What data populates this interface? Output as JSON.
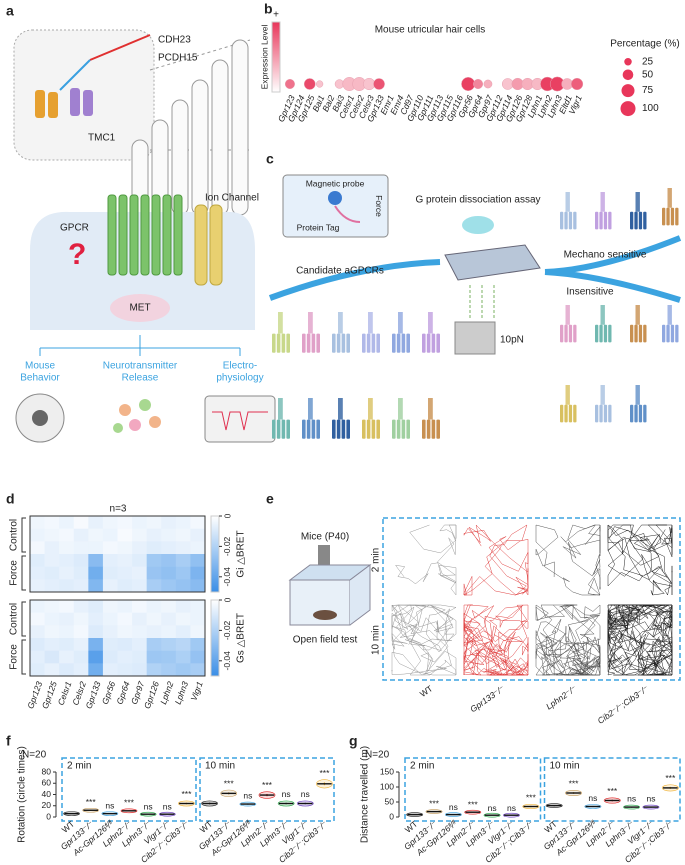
{
  "panels": {
    "a": {
      "label": "a",
      "cdh23": "CDH23",
      "pcdh15": "PCDH15",
      "tmc1": "TMC1",
      "gpcr": "GPCR",
      "question": "?",
      "ion_channel": "Ion Channel",
      "met": "MET",
      "mouse_behavior": [
        "Mouse",
        "Behavior"
      ],
      "neurotransmitter_release": [
        "Neurotransmitter",
        "Release"
      ],
      "electrophysiology": [
        "Electro-",
        "physiology"
      ]
    },
    "c": {
      "label": "c",
      "magnetic_probe": "Magnetic probe",
      "force": "Force",
      "protein_tag": "Protein Tag",
      "assay": "G protein dissociation assay",
      "candidates": "Candidate aGPCRs",
      "mechano_sensitive": "Mechano sensitive",
      "insensitive": "Insensitive",
      "force_value": "10pN"
    },
    "e": {
      "label": "e",
      "mice": "Mice (P40)",
      "test": "Open field test",
      "rows": [
        "2 min",
        "10 min"
      ],
      "columns": [
        "WT",
        "Gpr133⁻/⁻",
        "Lphn2⁻/⁻",
        "Cib2⁻/⁻;Cib3⁻/⁻"
      ]
    }
  },
  "chart_data": [
    {
      "type": "dot",
      "panel_label": "b",
      "title": "Mouse utricular hair cells",
      "colorbar_label": "Expression Level",
      "colorbar_max_label": "+",
      "colormap": [
        "#ffffff",
        "#e8365a"
      ],
      "size_legend_title": "Percentage (%)",
      "size_legend": [
        25,
        50,
        75,
        100
      ],
      "categories": [
        "Gpr123",
        "Gpr124",
        "Gpr125",
        "Bai1",
        "Bai2",
        "Bai3",
        "Celsr1",
        "Celsr2",
        "Celsr3",
        "Gpr133",
        "Emr1",
        "Emr4",
        "Cd97",
        "Gpr110",
        "Gpr111",
        "Gpr113",
        "Gpr115",
        "Gpr116",
        "Gpr56",
        "Gpr64",
        "Gpr97",
        "Gpr112",
        "Gpr114",
        "Gpr126",
        "Gpr128",
        "Lphn1",
        "Lphn2",
        "Lphn3",
        "Eltd1",
        "Vlgr1"
      ],
      "label_colors": [
        "#e02020",
        "#222",
        "#e02020",
        "#222",
        "#222",
        "#222",
        "#e02020",
        "#e02020",
        "#222",
        "#e02020",
        "#222",
        "#222",
        "#222",
        "#222",
        "#222",
        "#222",
        "#222",
        "#222",
        "#e02020",
        "#e02020",
        "#e02020",
        "#222",
        "#222",
        "#e02020",
        "#222",
        "#222",
        "#e02020",
        "#e02020",
        "#222",
        "#e02020"
      ],
      "values": [
        40,
        null,
        55,
        20,
        null,
        35,
        80,
        80,
        60,
        55,
        null,
        null,
        null,
        null,
        null,
        null,
        null,
        null,
        80,
        40,
        30,
        null,
        55,
        60,
        60,
        60,
        85,
        90,
        55,
        60
      ],
      "expression": [
        0.7,
        null,
        0.9,
        0.3,
        null,
        0.3,
        0.35,
        0.35,
        0.3,
        0.85,
        null,
        null,
        null,
        null,
        null,
        null,
        null,
        null,
        0.95,
        0.6,
        0.4,
        null,
        0.3,
        0.5,
        0.4,
        0.35,
        0.95,
        0.95,
        0.4,
        0.8
      ]
    },
    {
      "type": "heatmap",
      "panel_label": "d",
      "title": "n=3",
      "row_groups": [
        "Control",
        "Force"
      ],
      "colorbar_label": "Gi △BRET",
      "clim": [
        -0.05,
        0
      ],
      "cticks": [
        0,
        -0.02,
        -0.04
      ],
      "colormap": [
        "#ffffff",
        "#3a8ee6"
      ],
      "values": [
        [
          -0.004,
          -0.003,
          -0.005,
          -0.002,
          -0.006,
          -0.004,
          -0.003,
          -0.005,
          -0.004,
          -0.006,
          -0.005,
          -0.003
        ],
        [
          -0.005,
          -0.004,
          -0.003,
          -0.006,
          -0.004,
          -0.005,
          -0.002,
          -0.004,
          -0.006,
          -0.005,
          -0.004,
          -0.006
        ],
        [
          -0.003,
          -0.006,
          -0.004,
          -0.005,
          -0.005,
          -0.003,
          -0.004,
          -0.006,
          -0.008,
          -0.007,
          -0.006,
          -0.005
        ],
        [
          -0.008,
          -0.006,
          -0.007,
          -0.009,
          -0.03,
          -0.007,
          -0.006,
          -0.008,
          -0.024,
          -0.026,
          -0.022,
          -0.028
        ],
        [
          -0.007,
          -0.008,
          -0.006,
          -0.008,
          -0.036,
          -0.008,
          -0.007,
          -0.006,
          -0.026,
          -0.028,
          -0.025,
          -0.033
        ],
        [
          -0.006,
          -0.007,
          -0.008,
          -0.007,
          -0.032,
          -0.006,
          -0.008,
          -0.007,
          -0.022,
          -0.025,
          -0.027,
          -0.03
        ]
      ]
    },
    {
      "type": "heatmap",
      "row_groups": [
        "Control",
        "Force"
      ],
      "colorbar_label": "Gs △BRET",
      "clim": [
        -0.05,
        0
      ],
      "cticks": [
        0,
        -0.02,
        -0.04
      ],
      "colormap": [
        "#ffffff",
        "#3a8ee6"
      ],
      "categories": [
        "Gpr123",
        "Gpr125",
        "Celsr1",
        "Celsr2",
        "Gpr133",
        "Gpr56",
        "Gpr64",
        "Gpr97",
        "Gpr126",
        "Lphn2",
        "Lphn3",
        "Vlgr1"
      ],
      "label_colors": [
        "#222",
        "#222",
        "#222",
        "#222",
        "#e02020",
        "#222",
        "#222",
        "#222",
        "#e02020",
        "#e02020",
        "#e02020",
        "#e02020"
      ],
      "values": [
        [
          -0.005,
          -0.004,
          -0.003,
          -0.006,
          -0.008,
          -0.004,
          -0.005,
          -0.003,
          -0.005,
          -0.004,
          -0.006,
          -0.005
        ],
        [
          -0.003,
          -0.005,
          -0.006,
          -0.004,
          -0.007,
          -0.005,
          -0.003,
          -0.006,
          -0.004,
          -0.006,
          -0.004,
          -0.005
        ],
        [
          -0.006,
          -0.004,
          -0.005,
          -0.003,
          -0.009,
          -0.006,
          -0.004,
          -0.005,
          -0.006,
          -0.005,
          -0.007,
          -0.004
        ],
        [
          -0.009,
          -0.007,
          -0.008,
          -0.006,
          -0.034,
          -0.008,
          -0.009,
          -0.007,
          -0.022,
          -0.02,
          -0.018,
          -0.024
        ],
        [
          -0.007,
          -0.01,
          -0.006,
          -0.008,
          -0.042,
          -0.009,
          -0.007,
          -0.008,
          -0.025,
          -0.024,
          -0.021,
          -0.027
        ],
        [
          -0.008,
          -0.006,
          -0.009,
          -0.007,
          -0.036,
          -0.007,
          -0.008,
          -0.009,
          -0.02,
          -0.022,
          -0.024,
          -0.022
        ]
      ]
    },
    {
      "type": "strip",
      "panel_label": "f",
      "annotation": "N=20",
      "ylabel": "Rotation (circle times)",
      "ylim": [
        0,
        80
      ],
      "yticks": [
        0,
        20,
        40,
        60,
        80
      ],
      "groups": [
        "2 min",
        "10 min"
      ],
      "categories": [
        "WT",
        "Gpr133⁻/⁻",
        "Ac-Gpr126ᶠˡ/ᶠˡ",
        "Lphn2⁻/⁻",
        "Lphn3⁻/⁻",
        "Vlgr1⁻/⁻",
        "Cib2⁻/⁻;Cib3⁻/⁻",
        "WT",
        "Gpr133⁻/⁻",
        "Ac-Gpr126ᶠˡ/ᶠˡ",
        "Lphn2⁻/⁻",
        "Lphn3⁻/⁻",
        "Vlgr1⁻/⁻",
        "Cib2⁻/⁻;Cib3⁻/⁻"
      ],
      "colors": [
        "#222",
        "#c39a5a",
        "#3aa0e0",
        "#e02828",
        "#2aa84a",
        "#6a3fc0",
        "#f0b030",
        "#222",
        "#c39a5a",
        "#3aa0e0",
        "#e02828",
        "#2aa84a",
        "#6a3fc0",
        "#f0b030"
      ],
      "values": [
        6,
        12,
        6,
        11,
        5,
        5,
        24,
        24,
        42,
        23,
        39,
        24,
        24,
        59
      ],
      "errors": [
        0.6,
        1,
        0.7,
        0.9,
        0.5,
        0.5,
        1.5,
        1.5,
        2,
        1.2,
        2,
        1.5,
        1.5,
        2.5
      ],
      "significance": [
        null,
        "***",
        "ns",
        "***",
        "ns",
        "ns",
        "***",
        null,
        "***",
        "ns",
        "***",
        "ns",
        "ns",
        "***"
      ]
    },
    {
      "type": "strip",
      "panel_label": "g",
      "annotation": "N=20",
      "ylabel": "Distance travelled (m)",
      "ylim": [
        0,
        150
      ],
      "yticks": [
        0,
        50,
        100,
        150
      ],
      "groups": [
        "2 min",
        "10 min"
      ],
      "categories": [
        "WT",
        "Gpr133⁻/⁻",
        "Ac-Gpr126ᶠˡ/ᶠˡ",
        "Lphn2⁻/⁻",
        "Lphn3⁻/⁻",
        "Vlgr1⁻/⁻",
        "Cib2⁻/⁻;Cib3⁻/⁻",
        "WT",
        "Gpr133⁻/⁻",
        "Ac-Gpr126ᶠˡ/ᶠˡ",
        "Lphn2⁻/⁻",
        "Lphn3⁻/⁻",
        "Vlgr1⁻/⁻",
        "Cib2⁻/⁻;Cib3⁻/⁻"
      ],
      "colors": [
        "#222",
        "#c39a5a",
        "#3aa0e0",
        "#e02828",
        "#2aa84a",
        "#6a3fc0",
        "#f0b030",
        "#222",
        "#c39a5a",
        "#3aa0e0",
        "#e02828",
        "#2aa84a",
        "#6a3fc0",
        "#f0b030"
      ],
      "values": [
        8,
        18,
        8,
        16,
        6,
        6,
        35,
        38,
        80,
        35,
        55,
        33,
        33,
        97
      ],
      "errors": [
        0.8,
        1.5,
        0.8,
        1.2,
        0.6,
        0.6,
        2.5,
        2,
        3,
        2,
        3,
        2,
        2,
        3.5
      ],
      "significance": [
        null,
        "***",
        "ns",
        "***",
        "ns",
        "ns",
        "***",
        null,
        "***",
        "ns",
        "***",
        "ns",
        "ns",
        "***"
      ]
    }
  ]
}
